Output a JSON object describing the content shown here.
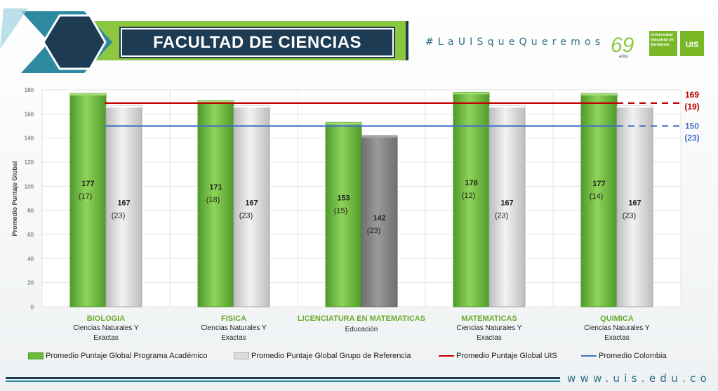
{
  "header": {
    "title": "FACULTAD DE CIENCIAS",
    "hashtag": "#LaUISqueQueremos",
    "anniversary": "69",
    "anniversary_word": "años",
    "university_name": "Universidad Industrial de Santander",
    "logo_mark": "UIS"
  },
  "footer": {
    "url": "www.uis.edu.co"
  },
  "colors": {
    "program_bar": "#6cbb3c",
    "reference_bar": "#cfcfcf",
    "reference_bar_dark": "#7f7f7f",
    "uis_line": "#c00000",
    "colombia_line": "#4472c4",
    "accent_green": "#8dc63f",
    "accent_teal": "#2e8aa0"
  },
  "chart_data": {
    "type": "bar",
    "ylabel": "Promedio Puntaje Global",
    "ylim": [
      0,
      180
    ],
    "yticks": [
      0,
      20,
      40,
      60,
      80,
      100,
      120,
      140,
      160,
      180
    ],
    "grid": true,
    "legend_position": "bottom",
    "categories": [
      {
        "name": "BIOLOGIA",
        "group": "Ciencias Naturales Y Exactas"
      },
      {
        "name": "FISICA",
        "group": "Ciencias Naturales Y Exactas"
      },
      {
        "name": "LICENCIATURA EN MATEMATICAS",
        "group": "Educación"
      },
      {
        "name": "MATEMATICAS",
        "group": "Ciencias Naturales Y Exactas"
      },
      {
        "name": "QUIMICA",
        "group": "Ciencias Naturales Y Exactas"
      }
    ],
    "series": [
      {
        "name": "Promedio Puntaje Global Programa Académico",
        "values": [
          177,
          171,
          153,
          178,
          177
        ],
        "counts": [
          "(17)",
          "(18)",
          "(15)",
          "(12)",
          "(14)"
        ]
      },
      {
        "name": "Promedio Puntaje Global Grupo de Referencia",
        "values": [
          167,
          167,
          142,
          167,
          167
        ],
        "counts": [
          "(23)",
          "(23)",
          "(23)",
          "(23)",
          "(23)"
        ]
      }
    ],
    "reference_lines": [
      {
        "name": "Promedio Puntaje Global UIS",
        "value": 169,
        "label": "169",
        "count": "(19)"
      },
      {
        "name": "Promedio Colombia",
        "value": 150,
        "label": "150",
        "count": "(23)"
      }
    ]
  }
}
